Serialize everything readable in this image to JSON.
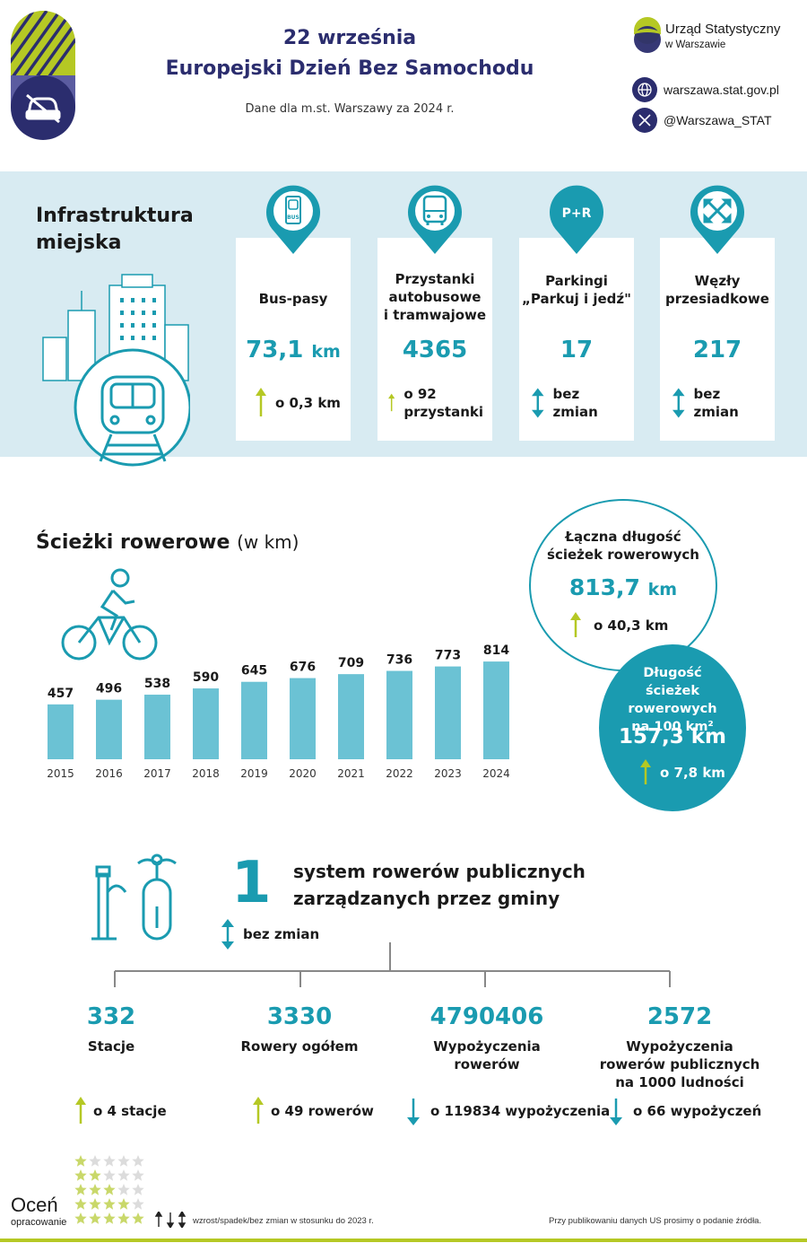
{
  "header": {
    "date": "22 września",
    "title": "Europejski Dzień Bez Samochodu",
    "subtitle": "Dane dla m.st. Warszawy za 2024 r.",
    "logo_name": "Urząd Statystyczny",
    "logo_sub": "w Warszawie",
    "website": "warszawa.stat.gov.pl",
    "twitter": "@Warszawa_STAT"
  },
  "infrastructure": {
    "title_line1": "Infrastruktura",
    "title_line2": "miejska",
    "cards": [
      {
        "icon": "bus-lane-icon",
        "label_lines": [
          "Bus-pasy"
        ],
        "value": "73,1",
        "unit": "km",
        "change_dir": "up",
        "change_lines": [
          "o 0,3 km"
        ]
      },
      {
        "icon": "bus-icon",
        "label_lines": [
          "Przystanki",
          "autobusowe",
          "i tramwajowe"
        ],
        "value": "4365",
        "unit": "",
        "change_dir": "up",
        "change_lines": [
          "o 92",
          "przystanki"
        ]
      },
      {
        "icon": "park-and-ride-icon",
        "icon_text": "P+R",
        "label_lines": [
          "Parkingi",
          "„Parkuj i jedź\""
        ],
        "value": "17",
        "unit": "",
        "change_dir": "same",
        "change_lines": [
          "bez zmian"
        ]
      },
      {
        "icon": "transfer-hub-icon",
        "label_lines": [
          "Węzły",
          "przesiadkowe"
        ],
        "value": "217",
        "unit": "",
        "change_dir": "same",
        "change_lines": [
          "bez zmian"
        ]
      }
    ]
  },
  "bike_paths": {
    "title": "Ścieżki rowerowe",
    "title_unit": "(w km)",
    "total_label_line1": "Łączna długość",
    "total_label_line2": "ścieżek rowerowych",
    "total_value": "813,7",
    "total_unit": "km",
    "total_change": "o 40,3 km",
    "density_label_line1": "Długość",
    "density_label_line2": "ścieżek rowerowych",
    "density_label_line3": "na 100 km²",
    "density_value": "157,3 km",
    "density_change": "o 7,8 km"
  },
  "chart_data": {
    "type": "bar",
    "categories": [
      "2015",
      "2016",
      "2017",
      "2018",
      "2019",
      "2020",
      "2021",
      "2022",
      "2023",
      "2024"
    ],
    "values": [
      457,
      496,
      538,
      590,
      645,
      676,
      709,
      736,
      773,
      814
    ],
    "title": "Ścieżki rowerowe (w km)",
    "xlabel": "",
    "ylabel": "",
    "ylim": [
      0,
      900
    ],
    "bar_color": "#6bc2d4"
  },
  "bike_share": {
    "number": "1",
    "text_line1": "system rowerów publicznych",
    "text_line2": "zarządzanych przez gminy",
    "change": "bez zmian",
    "stats": [
      {
        "value": "332",
        "label_lines": [
          "Stacje"
        ],
        "change_dir": "up",
        "change": "o 4 stacje"
      },
      {
        "value": "3330",
        "label_lines": [
          "Rowery ogółem"
        ],
        "change_dir": "up",
        "change": "o 49 rowerów"
      },
      {
        "value": "4790406",
        "label_lines": [
          "Wypożyczenia",
          "rowerów"
        ],
        "change_dir": "down",
        "change": "o 119834 wypożyczenia"
      },
      {
        "value": "2572",
        "label_lines": [
          "Wypożyczenia",
          "rowerów publicznych",
          "na 1000 ludności"
        ],
        "change_dir": "down",
        "change": "o 66 wypożyczeń"
      }
    ]
  },
  "footer": {
    "rate": "Oceń",
    "rate_sub": "opracowanie",
    "legend": "wzrost/spadek/bez zmian w stosunku do 2023 r.",
    "source_note": "Przy publikowaniu danych US prosimy o podanie źródła."
  },
  "colors": {
    "navy": "#2b2d6e",
    "teal": "#1a9bb0",
    "light_teal": "#6bc2d4",
    "lime": "#b5c824",
    "band": "#d8ebf2"
  }
}
